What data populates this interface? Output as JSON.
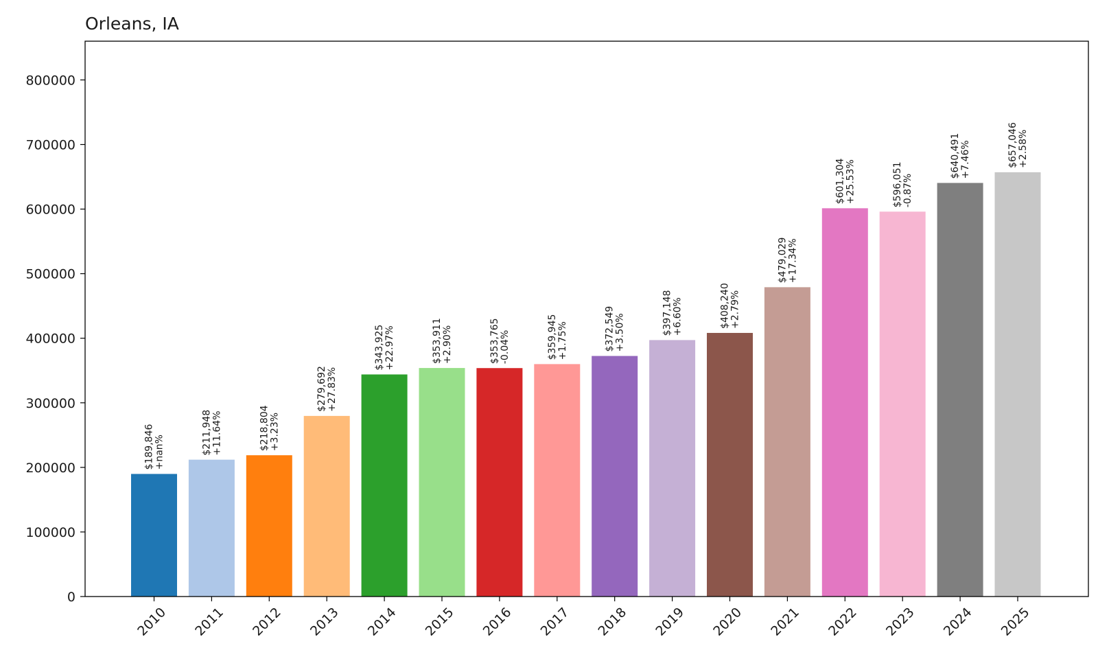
{
  "chart_data": {
    "type": "bar",
    "title": "Orleans, IA",
    "xlabel": "",
    "ylabel": "",
    "ylim": [
      0,
      860000
    ],
    "yticks": [
      0,
      100000,
      200000,
      300000,
      400000,
      500000,
      600000,
      700000,
      800000
    ],
    "ytick_labels": [
      "0",
      "100000",
      "200000",
      "300000",
      "400000",
      "500000",
      "600000",
      "700000",
      "800000"
    ],
    "grid": false,
    "categories": [
      "2010",
      "2011",
      "2012",
      "2013",
      "2014",
      "2015",
      "2016",
      "2017",
      "2018",
      "2019",
      "2020",
      "2021",
      "2022",
      "2023",
      "2024",
      "2025"
    ],
    "values": [
      189846,
      211948,
      218804,
      279692,
      343925,
      353911,
      353765,
      359945,
      372549,
      397148,
      408240,
      479029,
      601304,
      596051,
      640491,
      657046
    ],
    "value_labels": [
      "$189,846",
      "$211,948",
      "$218,804",
      "$279,692",
      "$343,925",
      "$353,911",
      "$353,765",
      "$359,945",
      "$372,549",
      "$397,148",
      "$408,240",
      "$479,029",
      "$601,304",
      "$596,051",
      "$640,491",
      "$657,046"
    ],
    "change_labels": [
      "+nan%",
      "+11.64%",
      "+3.23%",
      "+27.83%",
      "+22.97%",
      "+2.90%",
      "-0.04%",
      "+1.75%",
      "+3.50%",
      "+6.60%",
      "+2.79%",
      "+17.34%",
      "+25.53%",
      "-0.87%",
      "+7.46%",
      "+2.58%"
    ],
    "colors": [
      "#1f77b4",
      "#aec7e8",
      "#ff7f0e",
      "#ffbb78",
      "#2ca02c",
      "#98df8a",
      "#d62728",
      "#ff9896",
      "#9467bd",
      "#c5b0d5",
      "#8c564b",
      "#c49c94",
      "#e377c2",
      "#f7b6d2",
      "#7f7f7f",
      "#c7c7c7"
    ]
  }
}
